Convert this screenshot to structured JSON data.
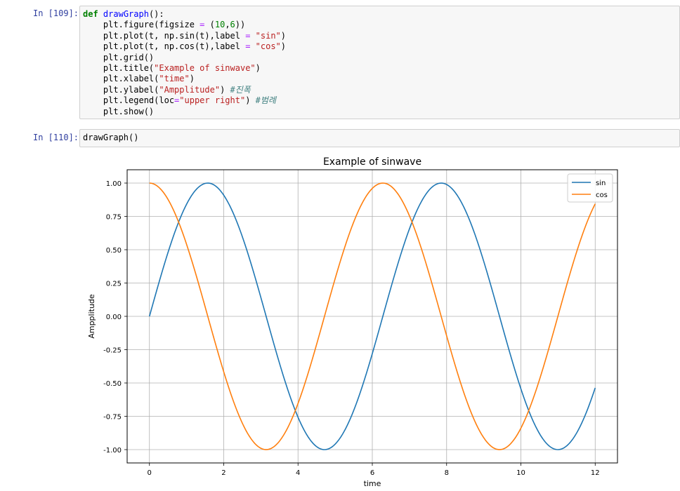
{
  "cells": [
    {
      "prompt": "In [109]:",
      "lines": [
        [
          {
            "t": "def",
            "c": "kw"
          },
          {
            "t": " "
          },
          {
            "t": "drawGraph",
            "c": "fn"
          },
          {
            "t": "():"
          }
        ],
        [
          {
            "t": "    plt.figure(figsize "
          },
          {
            "t": "=",
            "c": "op"
          },
          {
            "t": " ("
          },
          {
            "t": "10",
            "c": "num"
          },
          {
            "t": ","
          },
          {
            "t": "6",
            "c": "num"
          },
          {
            "t": "))"
          }
        ],
        [
          {
            "t": "    plt.plot(t, np.sin(t),label "
          },
          {
            "t": "=",
            "c": "op"
          },
          {
            "t": " "
          },
          {
            "t": "\"sin\"",
            "c": "str"
          },
          {
            "t": ")"
          }
        ],
        [
          {
            "t": "    plt.plot(t, np.cos(t),label "
          },
          {
            "t": "=",
            "c": "op"
          },
          {
            "t": " "
          },
          {
            "t": "\"cos\"",
            "c": "str"
          },
          {
            "t": ")"
          }
        ],
        [
          {
            "t": "    plt.grid()"
          }
        ],
        [
          {
            "t": "    plt.title("
          },
          {
            "t": "\"Example of sinwave\"",
            "c": "str"
          },
          {
            "t": ")"
          }
        ],
        [
          {
            "t": "    plt.xlabel("
          },
          {
            "t": "\"time\"",
            "c": "str"
          },
          {
            "t": ")"
          }
        ],
        [
          {
            "t": "    plt.ylabel("
          },
          {
            "t": "\"Ampplitude\"",
            "c": "str"
          },
          {
            "t": ") "
          },
          {
            "t": "#진폭",
            "c": "cm"
          }
        ],
        [
          {
            "t": "    plt.legend(loc"
          },
          {
            "t": "=",
            "c": "op"
          },
          {
            "t": "\"upper right\"",
            "c": "str"
          },
          {
            "t": ") "
          },
          {
            "t": "#범례",
            "c": "cm"
          }
        ],
        [
          {
            "t": "    plt.show()"
          }
        ]
      ]
    },
    {
      "prompt": "In [110]:",
      "lines": [
        [
          {
            "t": "drawGraph()"
          }
        ]
      ]
    }
  ],
  "chart_data": {
    "type": "line",
    "title": "Example of sinwave",
    "xlabel": "time",
    "ylabel": "Ampplitude",
    "xlim": [
      -0.6,
      12.6
    ],
    "ylim": [
      -1.1,
      1.1
    ],
    "xticks": [
      0,
      2,
      4,
      6,
      8,
      10,
      12
    ],
    "xtick_labels": [
      "0",
      "2",
      "4",
      "6",
      "8",
      "10",
      "12"
    ],
    "yticks": [
      1.0,
      0.75,
      0.5,
      0.25,
      0.0,
      -0.25,
      -0.5,
      -0.75,
      -1.0
    ],
    "ytick_labels": [
      "1.00",
      "0.75",
      "0.50",
      "0.25",
      "0.00",
      "-0.25",
      "-0.50",
      "-0.75",
      "-1.00"
    ],
    "grid": true,
    "legend_position": "upper right",
    "x_range": [
      0,
      12
    ],
    "series": [
      {
        "name": "sin",
        "function": "sin",
        "color": "#1f77b4"
      },
      {
        "name": "cos",
        "function": "cos",
        "color": "#ff7f0e"
      }
    ]
  }
}
